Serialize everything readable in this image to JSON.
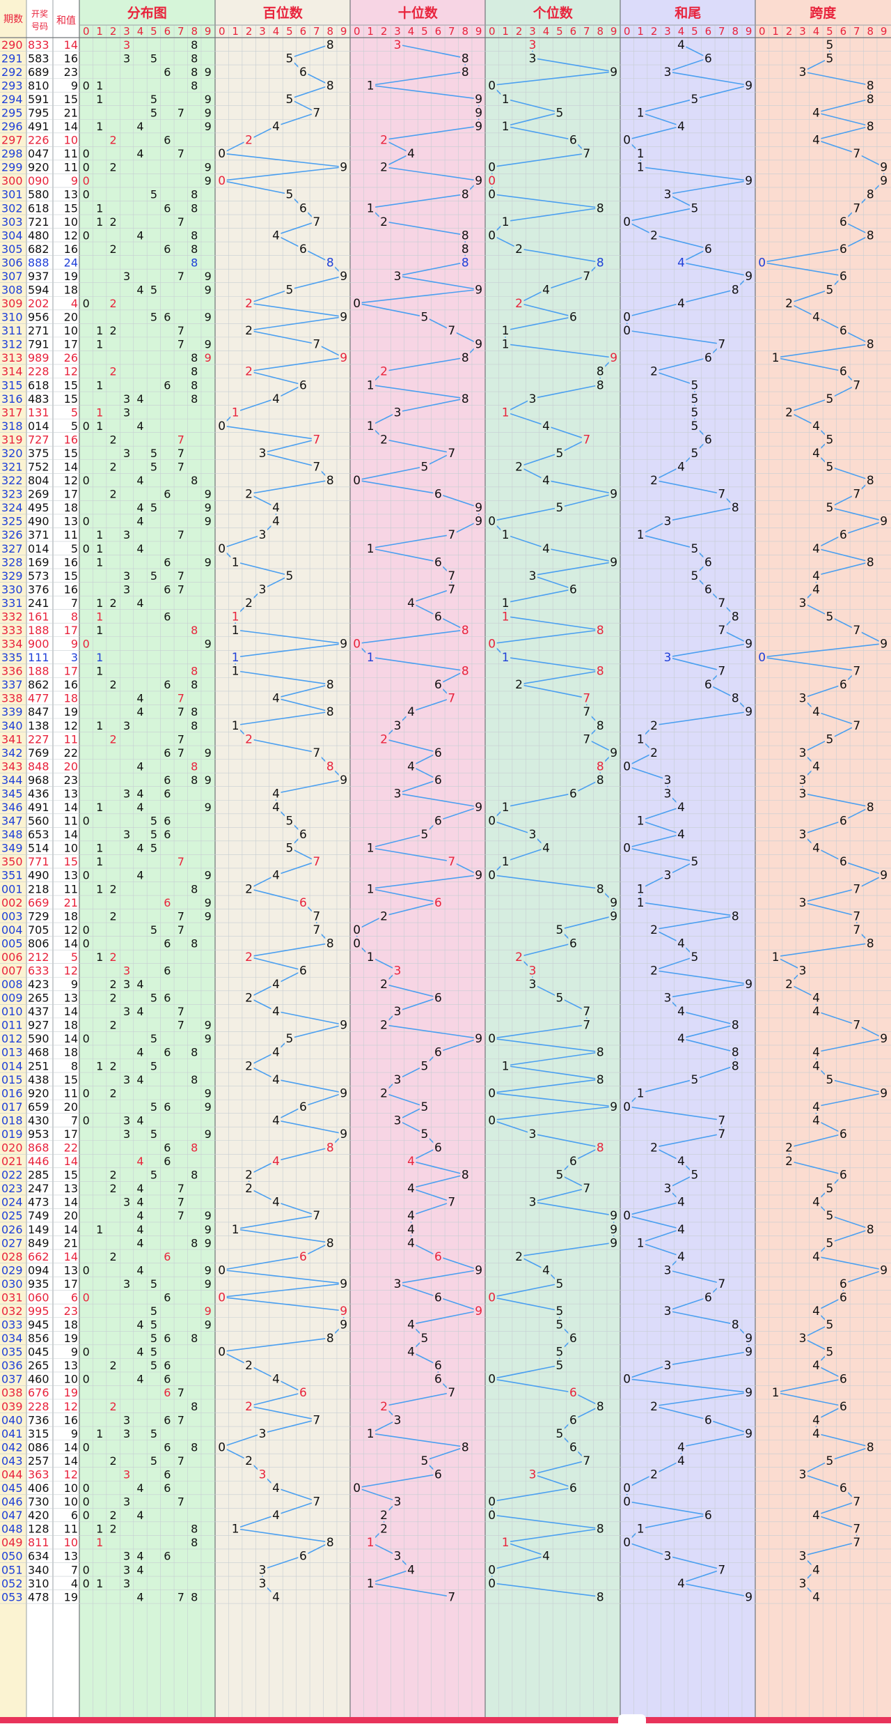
{
  "headers": {
    "period": "期数",
    "draw_top": "开奖",
    "draw_bottom": "号码",
    "sum": "和值",
    "sections": [
      "分布图",
      "百位数",
      "十位数",
      "个位数",
      "和尾",
      "跨度"
    ]
  },
  "digits": [
    "0",
    "1",
    "2",
    "3",
    "4",
    "5",
    "6",
    "7",
    "8",
    "9"
  ],
  "colors": {
    "header_red": "#e8233c",
    "repeat_red": "#e8233c",
    "triple_blue": "#1e3fd8",
    "line_blue": "#4a9ff0",
    "bg_distribution": "#d6f5d9",
    "bg_hundreds": "#f3efe4",
    "bg_tens": "#f7d5e4",
    "bg_units": "#d6ede0",
    "bg_sumtail": "#dcdcfa",
    "bg_span": "#fbdcd0",
    "bg_period": "#fbf3d2",
    "bg_number": "#ffffff",
    "bg_sum": "#ffffff"
  },
  "chart_data": {
    "type": "table",
    "rows": [
      {
        "p": "290",
        "n": "833",
        "s": "14"
      },
      {
        "p": "291",
        "n": "583",
        "s": "16"
      },
      {
        "p": "292",
        "n": "689",
        "s": "23"
      },
      {
        "p": "293",
        "n": "810",
        "s": "9"
      },
      {
        "p": "294",
        "n": "591",
        "s": "15"
      },
      {
        "p": "295",
        "n": "795",
        "s": "21"
      },
      {
        "p": "296",
        "n": "491",
        "s": "14"
      },
      {
        "p": "297",
        "n": "226",
        "s": "10"
      },
      {
        "p": "298",
        "n": "047",
        "s": "11"
      },
      {
        "p": "299",
        "n": "920",
        "s": "11"
      },
      {
        "p": "300",
        "n": "090",
        "s": "9"
      },
      {
        "p": "301",
        "n": "580",
        "s": "13"
      },
      {
        "p": "302",
        "n": "618",
        "s": "15"
      },
      {
        "p": "303",
        "n": "721",
        "s": "10"
      },
      {
        "p": "304",
        "n": "480",
        "s": "12"
      },
      {
        "p": "305",
        "n": "682",
        "s": "16"
      },
      {
        "p": "306",
        "n": "888",
        "s": "24"
      },
      {
        "p": "307",
        "n": "937",
        "s": "19"
      },
      {
        "p": "308",
        "n": "594",
        "s": "18"
      },
      {
        "p": "309",
        "n": "202",
        "s": "4"
      },
      {
        "p": "310",
        "n": "956",
        "s": "20"
      },
      {
        "p": "311",
        "n": "271",
        "s": "10"
      },
      {
        "p": "312",
        "n": "791",
        "s": "17"
      },
      {
        "p": "313",
        "n": "989",
        "s": "26"
      },
      {
        "p": "314",
        "n": "228",
        "s": "12"
      },
      {
        "p": "315",
        "n": "618",
        "s": "15"
      },
      {
        "p": "316",
        "n": "483",
        "s": "15"
      },
      {
        "p": "317",
        "n": "131",
        "s": "5"
      },
      {
        "p": "318",
        "n": "014",
        "s": "5"
      },
      {
        "p": "319",
        "n": "727",
        "s": "16"
      },
      {
        "p": "320",
        "n": "375",
        "s": "15"
      },
      {
        "p": "321",
        "n": "752",
        "s": "14"
      },
      {
        "p": "322",
        "n": "804",
        "s": "12"
      },
      {
        "p": "323",
        "n": "269",
        "s": "17"
      },
      {
        "p": "324",
        "n": "495",
        "s": "18"
      },
      {
        "p": "325",
        "n": "490",
        "s": "13"
      },
      {
        "p": "326",
        "n": "371",
        "s": "11"
      },
      {
        "p": "327",
        "n": "014",
        "s": "5"
      },
      {
        "p": "328",
        "n": "169",
        "s": "16"
      },
      {
        "p": "329",
        "n": "573",
        "s": "15"
      },
      {
        "p": "330",
        "n": "376",
        "s": "16"
      },
      {
        "p": "331",
        "n": "241",
        "s": "7"
      },
      {
        "p": "332",
        "n": "161",
        "s": "8"
      },
      {
        "p": "333",
        "n": "188",
        "s": "17"
      },
      {
        "p": "334",
        "n": "900",
        "s": "9"
      },
      {
        "p": "335",
        "n": "111",
        "s": "3"
      },
      {
        "p": "336",
        "n": "188",
        "s": "17"
      },
      {
        "p": "337",
        "n": "862",
        "s": "16"
      },
      {
        "p": "338",
        "n": "477",
        "s": "18"
      },
      {
        "p": "339",
        "n": "847",
        "s": "19"
      },
      {
        "p": "340",
        "n": "138",
        "s": "12"
      },
      {
        "p": "341",
        "n": "227",
        "s": "11"
      },
      {
        "p": "342",
        "n": "769",
        "s": "22"
      },
      {
        "p": "343",
        "n": "848",
        "s": "20"
      },
      {
        "p": "344",
        "n": "968",
        "s": "23"
      },
      {
        "p": "345",
        "n": "436",
        "s": "13"
      },
      {
        "p": "346",
        "n": "491",
        "s": "14"
      },
      {
        "p": "347",
        "n": "560",
        "s": "11"
      },
      {
        "p": "348",
        "n": "653",
        "s": "14"
      },
      {
        "p": "349",
        "n": "514",
        "s": "10"
      },
      {
        "p": "350",
        "n": "771",
        "s": "15"
      },
      {
        "p": "351",
        "n": "490",
        "s": "13"
      },
      {
        "p": "001",
        "n": "218",
        "s": "11"
      },
      {
        "p": "002",
        "n": "669",
        "s": "21"
      },
      {
        "p": "003",
        "n": "729",
        "s": "18"
      },
      {
        "p": "004",
        "n": "705",
        "s": "12"
      },
      {
        "p": "005",
        "n": "806",
        "s": "14"
      },
      {
        "p": "006",
        "n": "212",
        "s": "5"
      },
      {
        "p": "007",
        "n": "633",
        "s": "12"
      },
      {
        "p": "008",
        "n": "423",
        "s": "9"
      },
      {
        "p": "009",
        "n": "265",
        "s": "13"
      },
      {
        "p": "010",
        "n": "437",
        "s": "14"
      },
      {
        "p": "011",
        "n": "927",
        "s": "18"
      },
      {
        "p": "012",
        "n": "590",
        "s": "14"
      },
      {
        "p": "013",
        "n": "468",
        "s": "18"
      },
      {
        "p": "014",
        "n": "251",
        "s": "8"
      },
      {
        "p": "015",
        "n": "438",
        "s": "15"
      },
      {
        "p": "016",
        "n": "920",
        "s": "11"
      },
      {
        "p": "017",
        "n": "659",
        "s": "20"
      },
      {
        "p": "018",
        "n": "430",
        "s": "7"
      },
      {
        "p": "019",
        "n": "953",
        "s": "17"
      },
      {
        "p": "020",
        "n": "868",
        "s": "22"
      },
      {
        "p": "021",
        "n": "446",
        "s": "14"
      },
      {
        "p": "022",
        "n": "285",
        "s": "15"
      },
      {
        "p": "023",
        "n": "247",
        "s": "13"
      },
      {
        "p": "024",
        "n": "473",
        "s": "14"
      },
      {
        "p": "025",
        "n": "749",
        "s": "20"
      },
      {
        "p": "026",
        "n": "149",
        "s": "14"
      },
      {
        "p": "027",
        "n": "849",
        "s": "21"
      },
      {
        "p": "028",
        "n": "662",
        "s": "14"
      },
      {
        "p": "029",
        "n": "094",
        "s": "13"
      },
      {
        "p": "030",
        "n": "935",
        "s": "17"
      },
      {
        "p": "031",
        "n": "060",
        "s": "6"
      },
      {
        "p": "032",
        "n": "995",
        "s": "23"
      },
      {
        "p": "033",
        "n": "945",
        "s": "18"
      },
      {
        "p": "034",
        "n": "856",
        "s": "19"
      },
      {
        "p": "035",
        "n": "045",
        "s": "9"
      },
      {
        "p": "036",
        "n": "265",
        "s": "13"
      },
      {
        "p": "037",
        "n": "460",
        "s": "10"
      },
      {
        "p": "038",
        "n": "676",
        "s": "19"
      },
      {
        "p": "039",
        "n": "228",
        "s": "12"
      },
      {
        "p": "040",
        "n": "736",
        "s": "16"
      },
      {
        "p": "041",
        "n": "315",
        "s": "9"
      },
      {
        "p": "042",
        "n": "086",
        "s": "14"
      },
      {
        "p": "043",
        "n": "257",
        "s": "14"
      },
      {
        "p": "044",
        "n": "363",
        "s": "12"
      },
      {
        "p": "045",
        "n": "406",
        "s": "10"
      },
      {
        "p": "046",
        "n": "730",
        "s": "10"
      },
      {
        "p": "047",
        "n": "420",
        "s": "6"
      },
      {
        "p": "048",
        "n": "128",
        "s": "11"
      },
      {
        "p": "049",
        "n": "811",
        "s": "10"
      },
      {
        "p": "050",
        "n": "634",
        "s": "13"
      },
      {
        "p": "051",
        "n": "340",
        "s": "7"
      },
      {
        "p": "052",
        "n": "310",
        "s": "4"
      },
      {
        "p": "053",
        "n": "478",
        "s": "19"
      }
    ]
  }
}
